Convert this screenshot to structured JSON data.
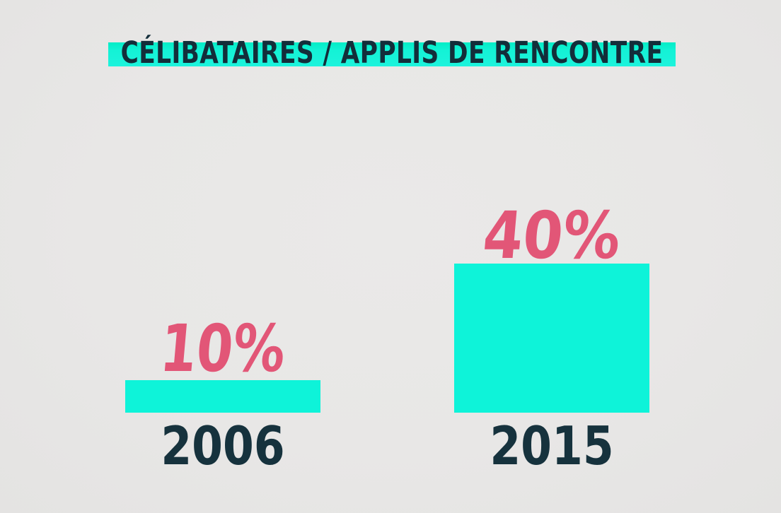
{
  "title": "CÉLIBATAIRES / APPLIS DE RENCONTRE",
  "chart_data": {
    "type": "bar",
    "title": "CÉLIBATAIRES / APPLIS DE RENCONTRE",
    "categories": [
      "2006",
      "2015"
    ],
    "values": [
      10,
      40
    ],
    "value_labels": [
      "10%",
      "40%"
    ],
    "unit": "%",
    "ylim": [
      0,
      45
    ],
    "grid": false,
    "legend": false,
    "layout": "two bars side by side, value label above each bar, year label below each bar, highlighted title band at top",
    "colors": {
      "bar": "#0ef3d9",
      "title_band": "#14f2d6",
      "value_label": "#e25677",
      "category_label": "#16323d",
      "title_text": "#132e3a",
      "background": "#e8e7e6"
    }
  }
}
